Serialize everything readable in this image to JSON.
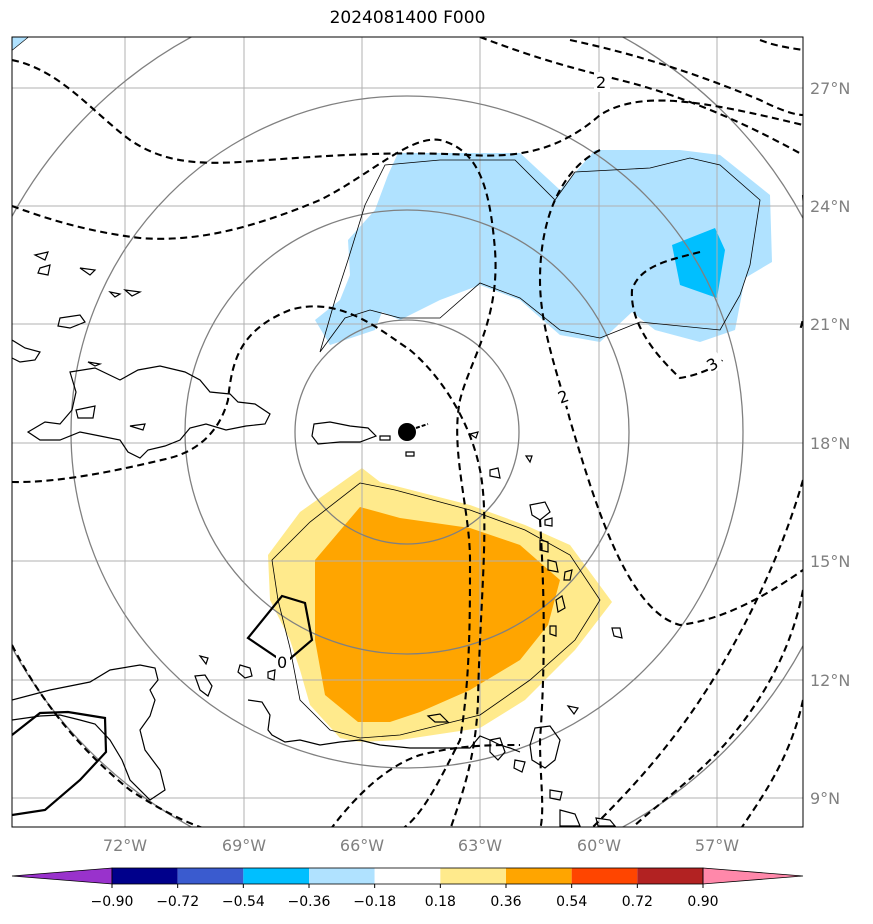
{
  "title": "2024081400 F000",
  "lon_labels": [
    "72°W",
    "69°W",
    "66°W",
    "63°W",
    "60°W",
    "57°W"
  ],
  "lat_labels": [
    "27°N",
    "24°N",
    "21°N",
    "18°N",
    "15°N",
    "12°N",
    "9°N"
  ],
  "colorbar": {
    "colors": [
      "#9932CC",
      "#00008B",
      "#3A5BCF",
      "#00BFFF",
      "#B0E2FF",
      "#FFFFFF",
      "#FFEA8C",
      "#FFA500",
      "#FF4500",
      "#B22222",
      "#FF88AA"
    ],
    "labels": [
      "−0.90",
      "−0.72",
      "−0.54",
      "−0.36",
      "−0.18",
      "0.18",
      "0.36",
      "0.54",
      "0.72",
      "0.90"
    ]
  },
  "contour_labels": [
    "2",
    "2",
    "3",
    "0"
  ],
  "fill_colors": {
    "light_blue": "#B0E2FF",
    "blue": "#00BFFF",
    "light_yellow": "#FFEA8C",
    "orange": "#FFA500"
  }
}
